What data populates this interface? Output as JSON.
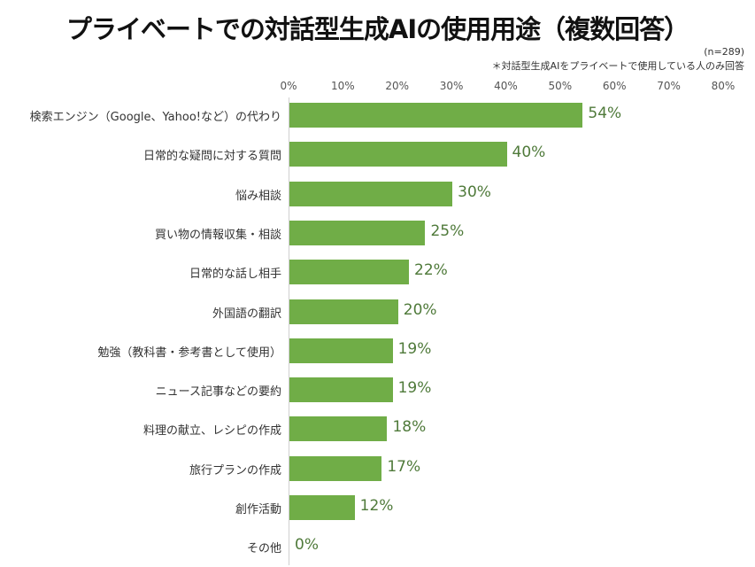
{
  "chart_data": {
    "type": "bar",
    "orientation": "horizontal",
    "title": "プライベートでの対話型生成AIの使用用途（複数回答）",
    "sample_note": "(n=289)",
    "footnote": "＊対話型生成AIをプライベートで使用している人のみ回答",
    "xlabel": "",
    "ylabel": "",
    "xlim": [
      0,
      80
    ],
    "ticks": [
      "0%",
      "10%",
      "20%",
      "30%",
      "40%",
      "50%",
      "60%",
      "70%",
      "80%"
    ],
    "tick_values": [
      0,
      10,
      20,
      30,
      40,
      50,
      60,
      70,
      80
    ],
    "grid": false,
    "legend": null,
    "bar_color": "#70ad47",
    "label_color": "#4f7a3a",
    "categories": [
      "検索エンジン（Google、Yahoo!など）の代わり",
      "日常的な疑問に対する質問",
      "悩み相談",
      "買い物の情報収集・相談",
      "日常的な話し相手",
      "外国語の翻訳",
      "勉強（教科書・参考書として使用）",
      "ニュース記事などの要約",
      "料理の献立、レシピの作成",
      "旅行プランの作成",
      "創作活動",
      "その他"
    ],
    "values": [
      54,
      40,
      30,
      25,
      22,
      20,
      19,
      19,
      18,
      17,
      12,
      0
    ],
    "value_labels": [
      "54%",
      "40%",
      "30%",
      "25%",
      "22%",
      "20%",
      "19%",
      "19%",
      "18%",
      "17%",
      "12%",
      "0%"
    ]
  }
}
